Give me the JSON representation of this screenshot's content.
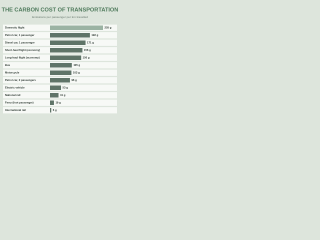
{
  "chart_data": {
    "type": "bar",
    "orientation": "horizontal",
    "title": "THE CARBON COST OF TRANSPORTATION",
    "subtitle": "Emissions per passenger per km travelled",
    "categories": [
      "Domestic flight",
      "Petrol car, 1 passenger",
      "Diesel car, 1 passenger",
      "Short-haul flight (economy)",
      "Long-haul flight (economy)",
      "Bus",
      "Motorcycle",
      "Petrol car, 2 passengers",
      "Electric vehicle",
      "National rail",
      "Ferry (foot passenger)",
      "International rail"
    ],
    "values": [
      255,
      192,
      171,
      156,
      150,
      105,
      103,
      96,
      53,
      41,
      19,
      6
    ],
    "value_labels": [
      "255 g",
      "192 g",
      "171 g",
      "156 g",
      "150 g",
      "105 g",
      "103 g",
      "96 g",
      "53 g",
      "41 g",
      "19 g",
      "6 g"
    ],
    "color": "#5f7468",
    "highlight_color": "#9bb3a3"
  }
}
